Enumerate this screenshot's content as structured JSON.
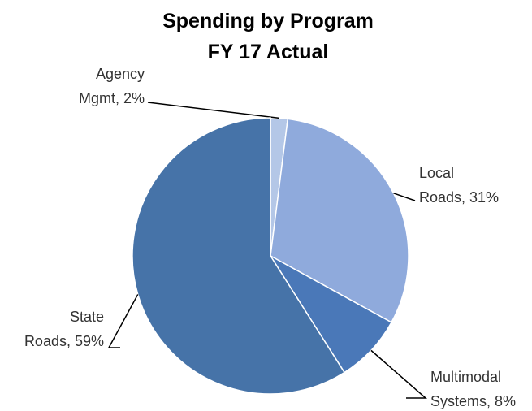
{
  "chart_data": {
    "type": "pie",
    "title": [
      "Spending by Program",
      "FY 17 Actual"
    ],
    "values": [
      2,
      31,
      8,
      59
    ],
    "value_labels": [
      "Agency\nMgmt, 2%",
      "Local\nRoads, 31%",
      "Multimodal\nSystems, 8%",
      "State\nRoads, 59%"
    ],
    "colors": [
      "#b4c7e7",
      "#8faadc",
      "#4a78b8",
      "#4673a8"
    ]
  }
}
